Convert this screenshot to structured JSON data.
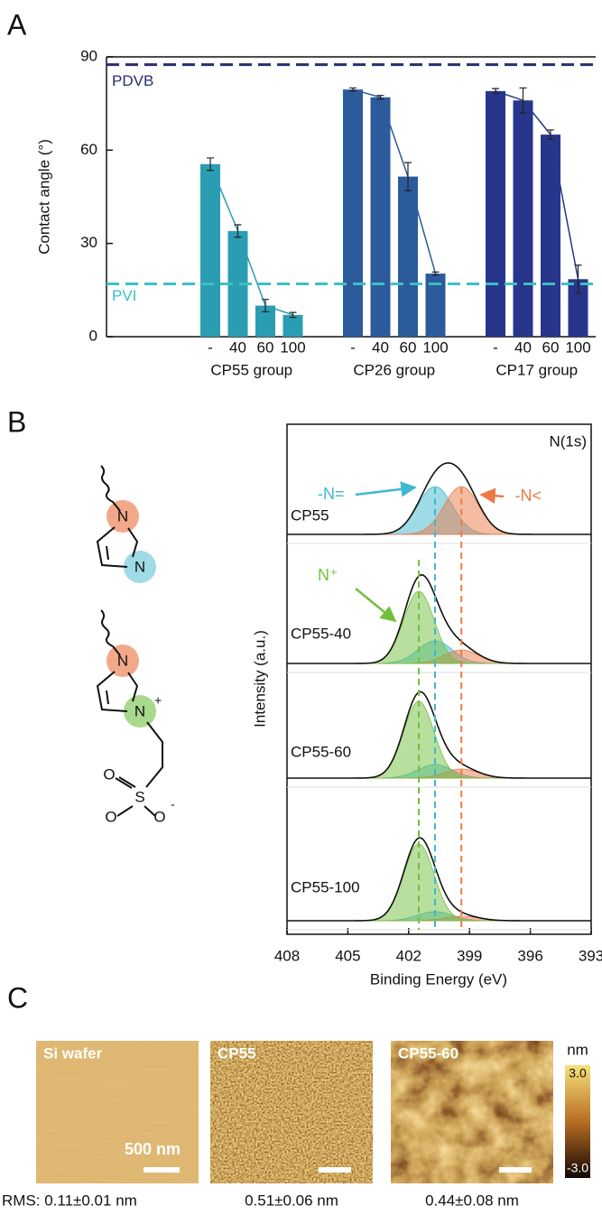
{
  "panel_labels": [
    "A",
    "B",
    "C"
  ],
  "chart_data": [
    {
      "type": "bar",
      "ylabel": "Contact angle (°)",
      "categories": [
        "-",
        "40",
        "60",
        "100"
      ],
      "ylim": [
        0,
        90
      ],
      "yticks": [
        0,
        30,
        60,
        90
      ],
      "series": [
        {
          "name": "CP55 group",
          "color": "#2b9db2",
          "values": [
            55.5,
            34,
            10,
            7
          ],
          "errors": [
            2,
            2,
            2,
            0.8
          ]
        },
        {
          "name": "CP26 group",
          "color": "#2c5b9c",
          "values": [
            79.5,
            77,
            51.5,
            20.3
          ],
          "errors": [
            0.5,
            0.6,
            4.5,
            0.5
          ]
        },
        {
          "name": "CP17 group",
          "color": "#27368a",
          "values": [
            79,
            76,
            65,
            18.5
          ],
          "errors": [
            0.8,
            4,
            1.5,
            4.5
          ]
        }
      ],
      "reference_lines": [
        {
          "label": "PDVB",
          "value": 87.5,
          "color": "#2a2d6b"
        },
        {
          "label": "PVI",
          "value": 17,
          "color": "#3cc0c4"
        }
      ]
    },
    {
      "type": "spectra",
      "title": "N(1s)",
      "xlabel": "Binding Energy (eV)",
      "ylabel": "Intensity (a.u.)",
      "xlim": [
        408,
        393
      ],
      "xticks": [
        408,
        405,
        402,
        399,
        396,
        393
      ],
      "components": [
        {
          "label": "-N=",
          "color": "#3fb8cf",
          "center": 400.7,
          "sigma": 0.85
        },
        {
          "label": "-N<",
          "color": "#ec7a45",
          "center": 399.4,
          "sigma": 0.85
        },
        {
          "label": "N⁺",
          "color": "#72bf3e",
          "center": 401.5,
          "sigma": 0.75
        }
      ],
      "spectra": [
        {
          "name": "CP55",
          "heights": [
            53,
            53,
            null
          ]
        },
        {
          "name": "CP55-40",
          "heights": [
            25,
            15,
            80
          ]
        },
        {
          "name": "CP55-60",
          "heights": [
            15,
            10,
            85
          ]
        },
        {
          "name": "CP55-100",
          "heights": [
            10,
            5,
            85
          ]
        }
      ]
    }
  ],
  "structures": [
    {
      "atoms": [
        "N",
        "N"
      ]
    },
    {
      "atoms": [
        "N",
        "N",
        "+",
        "S",
        "O",
        "O",
        "O",
        "-"
      ]
    }
  ],
  "afm": {
    "images": [
      {
        "label": "Si wafer",
        "rms": "RMS: 0.11±0.01 nm"
      },
      {
        "label": "CP55",
        "rms": "0.51±0.06 nm"
      },
      {
        "label": "CP55-60",
        "rms": "0.44±0.08 nm"
      }
    ],
    "scale_bar": "500 nm",
    "colorbar": {
      "unit": "nm",
      "ticks": [
        {
          "value": 3,
          "label": "3.0"
        },
        {
          "value": -3,
          "label": "-3.0"
        }
      ]
    }
  }
}
